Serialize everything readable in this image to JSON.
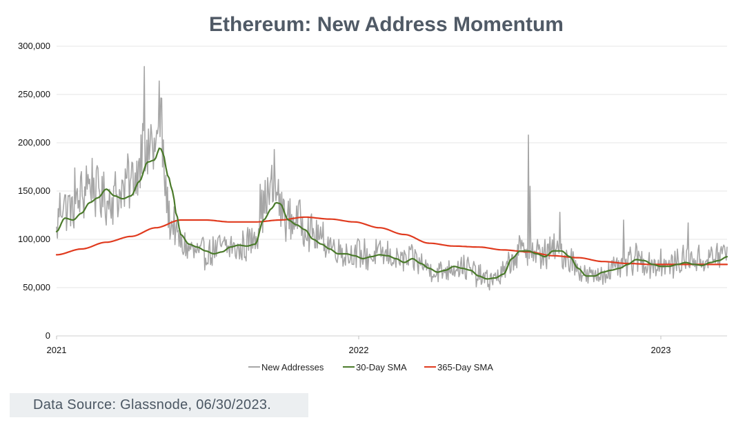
{
  "chart_data": {
    "type": "line",
    "title": "Ethereum: New Address Momentum",
    "xlabel": "",
    "ylabel": "",
    "x_range": [
      "2021-01-01",
      "2023-06-30"
    ],
    "x_ticks": [
      "2021",
      "2022",
      "2023"
    ],
    "y_ticks": [
      "0",
      "50,000",
      "100,000",
      "150,000",
      "200,000",
      "250,000",
      "300,000"
    ],
    "ylim": [
      0,
      300000
    ],
    "grid": true,
    "legend_position": "bottom",
    "series": [
      {
        "name": "New Addresses",
        "color": "#a6a6a6",
        "style": "noisy-daily",
        "anchors": [
          [
            0,
            105000
          ],
          [
            5,
            140000
          ],
          [
            10,
            135000
          ],
          [
            20,
            130000
          ],
          [
            30,
            145000
          ],
          [
            40,
            160000
          ],
          [
            50,
            150000
          ],
          [
            60,
            140000
          ],
          [
            70,
            145000
          ],
          [
            80,
            150000
          ],
          [
            90,
            160000
          ],
          [
            100,
            175000
          ],
          [
            105,
            230000
          ],
          [
            108,
            180000
          ],
          [
            115,
            200000
          ],
          [
            120,
            190000
          ],
          [
            125,
            220000
          ],
          [
            130,
            170000
          ],
          [
            135,
            125000
          ],
          [
            140,
            115000
          ],
          [
            150,
            95000
          ],
          [
            160,
            90000
          ],
          [
            170,
            85000
          ],
          [
            180,
            85000
          ],
          [
            190,
            88000
          ],
          [
            200,
            92000
          ],
          [
            210,
            92000
          ],
          [
            220,
            88000
          ],
          [
            230,
            95000
          ],
          [
            240,
            105000
          ],
          [
            250,
            135000
          ],
          [
            258,
            150000
          ],
          [
            265,
            145000
          ],
          [
            272,
            130000
          ],
          [
            280,
            120000
          ],
          [
            290,
            120000
          ],
          [
            300,
            115000
          ],
          [
            310,
            105000
          ],
          [
            320,
            100000
          ],
          [
            330,
            95000
          ],
          [
            340,
            90000
          ],
          [
            350,
            85000
          ],
          [
            365,
            85000
          ],
          [
            380,
            82000
          ],
          [
            390,
            85000
          ],
          [
            400,
            83000
          ],
          [
            410,
            80000
          ],
          [
            420,
            78000
          ],
          [
            430,
            80000
          ],
          [
            440,
            75000
          ],
          [
            450,
            70000
          ],
          [
            460,
            66000
          ],
          [
            470,
            68000
          ],
          [
            480,
            72000
          ],
          [
            490,
            72000
          ],
          [
            500,
            68000
          ],
          [
            510,
            62000
          ],
          [
            520,
            58000
          ],
          [
            530,
            60000
          ],
          [
            540,
            65000
          ],
          [
            550,
            78000
          ],
          [
            560,
            88000
          ],
          [
            570,
            88000
          ],
          [
            580,
            85000
          ],
          [
            590,
            82000
          ],
          [
            600,
            90000
          ],
          [
            610,
            85000
          ],
          [
            620,
            80000
          ],
          [
            630,
            70000
          ],
          [
            640,
            62000
          ],
          [
            650,
            62000
          ],
          [
            660,
            65000
          ],
          [
            670,
            68000
          ],
          [
            680,
            70000
          ],
          [
            690,
            75000
          ],
          [
            700,
            80000
          ],
          [
            710,
            76000
          ],
          [
            720,
            74000
          ],
          [
            730,
            72000
          ],
          [
            740,
            72000
          ],
          [
            750,
            76000
          ],
          [
            760,
            80000
          ],
          [
            770,
            80000
          ],
          [
            780,
            78000
          ],
          [
            790,
            80000
          ],
          [
            800,
            84000
          ],
          [
            810,
            86000
          ]
        ],
        "spikes": [
          [
            104,
            220000
          ],
          [
            106,
            279000
          ],
          [
            118,
            205000
          ],
          [
            124,
            264000
          ],
          [
            127,
            246000
          ],
          [
            99,
            180000
          ],
          [
            87,
            180000
          ],
          [
            22,
            174000
          ],
          [
            36,
            176000
          ],
          [
            246,
            157000
          ],
          [
            263,
            193000
          ],
          [
            268,
            162000
          ],
          [
            293,
            140000
          ],
          [
            570,
            208000
          ],
          [
            572,
            155000
          ],
          [
            608,
            128000
          ],
          [
            685,
            120000
          ],
          [
            730,
            90000
          ],
          [
            763,
            117000
          ],
          [
            590,
            100000
          ]
        ]
      },
      {
        "name": "30-Day SMA",
        "color": "#4a7a2a",
        "style": "smooth",
        "points": [
          [
            0,
            108000
          ],
          [
            10,
            122000
          ],
          [
            20,
            120000
          ],
          [
            30,
            127000
          ],
          [
            40,
            138000
          ],
          [
            50,
            143000
          ],
          [
            60,
            152000
          ],
          [
            70,
            145000
          ],
          [
            80,
            142000
          ],
          [
            90,
            145000
          ],
          [
            100,
            160000
          ],
          [
            110,
            180000
          ],
          [
            118,
            182000
          ],
          [
            125,
            195000
          ],
          [
            128,
            190000
          ],
          [
            135,
            165000
          ],
          [
            140,
            150000
          ],
          [
            145,
            125000
          ],
          [
            150,
            105000
          ],
          [
            160,
            95000
          ],
          [
            170,
            92000
          ],
          [
            180,
            88000
          ],
          [
            190,
            85000
          ],
          [
            200,
            87000
          ],
          [
            210,
            92000
          ],
          [
            220,
            94000
          ],
          [
            230,
            93000
          ],
          [
            240,
            95000
          ],
          [
            250,
            120000
          ],
          [
            260,
            132000
          ],
          [
            265,
            138000
          ],
          [
            270,
            137000
          ],
          [
            280,
            120000
          ],
          [
            290,
            115000
          ],
          [
            300,
            110000
          ],
          [
            310,
            100000
          ],
          [
            320,
            95000
          ],
          [
            330,
            90000
          ],
          [
            340,
            85000
          ],
          [
            350,
            85000
          ],
          [
            360,
            83000
          ],
          [
            370,
            80000
          ],
          [
            380,
            82000
          ],
          [
            390,
            84000
          ],
          [
            400,
            83000
          ],
          [
            410,
            80000
          ],
          [
            420,
            76000
          ],
          [
            430,
            80000
          ],
          [
            440,
            75000
          ],
          [
            450,
            70000
          ],
          [
            460,
            66000
          ],
          [
            470,
            68000
          ],
          [
            480,
            72000
          ],
          [
            490,
            70000
          ],
          [
            500,
            68000
          ],
          [
            510,
            62000
          ],
          [
            520,
            59000
          ],
          [
            530,
            60000
          ],
          [
            540,
            64000
          ],
          [
            550,
            80000
          ],
          [
            560,
            88000
          ],
          [
            570,
            88000
          ],
          [
            580,
            85000
          ],
          [
            590,
            82000
          ],
          [
            600,
            88000
          ],
          [
            610,
            88000
          ],
          [
            620,
            82000
          ],
          [
            630,
            70000
          ],
          [
            640,
            62000
          ],
          [
            650,
            62000
          ],
          [
            660,
            66000
          ],
          [
            670,
            68000
          ],
          [
            680,
            70000
          ],
          [
            690,
            74000
          ],
          [
            700,
            79000
          ],
          [
            710,
            78000
          ],
          [
            720,
            74000
          ],
          [
            730,
            72000
          ],
          [
            740,
            72000
          ],
          [
            750,
            74000
          ],
          [
            760,
            76000
          ],
          [
            770,
            74000
          ],
          [
            780,
            73000
          ],
          [
            790,
            76000
          ],
          [
            800,
            78000
          ],
          [
            810,
            82000
          ]
        ]
      },
      {
        "name": "365-Day SMA",
        "color": "#e03a1e",
        "style": "smooth",
        "points": [
          [
            0,
            84000
          ],
          [
            30,
            90000
          ],
          [
            60,
            97000
          ],
          [
            90,
            103000
          ],
          [
            120,
            112000
          ],
          [
            150,
            120000
          ],
          [
            180,
            120000
          ],
          [
            210,
            118000
          ],
          [
            240,
            118000
          ],
          [
            270,
            120000
          ],
          [
            300,
            123000
          ],
          [
            330,
            121000
          ],
          [
            360,
            118000
          ],
          [
            390,
            112000
          ],
          [
            420,
            105000
          ],
          [
            450,
            96000
          ],
          [
            480,
            93000
          ],
          [
            510,
            92000
          ],
          [
            540,
            89000
          ],
          [
            570,
            87000
          ],
          [
            600,
            83000
          ],
          [
            630,
            81000
          ],
          [
            660,
            77000
          ],
          [
            690,
            75000
          ],
          [
            720,
            74000
          ],
          [
            750,
            74000
          ],
          [
            780,
            74000
          ],
          [
            810,
            74000
          ]
        ]
      }
    ]
  },
  "legend": {
    "items": [
      "New Addresses",
      "30-Day SMA",
      "365-Day SMA"
    ]
  },
  "footer": {
    "source": "Data Source: Glassnode, 06/30/2023."
  }
}
